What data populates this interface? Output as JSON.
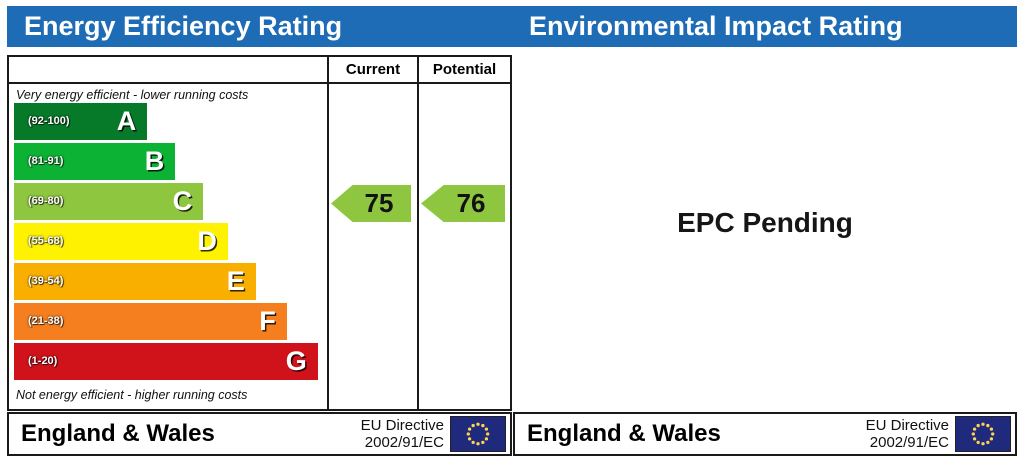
{
  "header": {
    "left_title": "Energy Efficiency Rating",
    "right_title": "Environmental Impact Rating"
  },
  "colors": {
    "header_bar": "#1d6cb5",
    "flag_bg": "#1f2a7d",
    "flag_stars": "#ffd34f",
    "border": "#1a1a1a"
  },
  "epc": {
    "columns": {
      "current": "Current",
      "potential": "Potential"
    },
    "top_caption": "Very energy efficient - lower running costs",
    "bottom_caption": "Not energy efficient - higher running costs",
    "bands": [
      {
        "letter": "A",
        "range": "(92-100)",
        "color": "#067a28",
        "width_pct": 43
      },
      {
        "letter": "B",
        "range": "(81-91)",
        "color": "#0cb234",
        "width_pct": 52
      },
      {
        "letter": "C",
        "range": "(69-80)",
        "color": "#8ec63f",
        "width_pct": 61
      },
      {
        "letter": "D",
        "range": "(55-68)",
        "color": "#fff200",
        "width_pct": 69
      },
      {
        "letter": "E",
        "range": "(39-54)",
        "color": "#f8af00",
        "width_pct": 78
      },
      {
        "letter": "F",
        "range": "(21-38)",
        "color": "#f57e1e",
        "width_pct": 88
      },
      {
        "letter": "G",
        "range": "(1-20)",
        "color": "#d0121a",
        "width_pct": 98
      }
    ],
    "current": {
      "value": "75",
      "band_index": 2,
      "color": "#8ec63f"
    },
    "potential": {
      "value": "76",
      "band_index": 2,
      "color": "#8ec63f"
    }
  },
  "environmental": {
    "pending_text": "EPC Pending"
  },
  "footer": {
    "region": "England & Wales",
    "directive_line1": "EU Directive",
    "directive_line2": "2002/91/EC"
  },
  "chart_data": {
    "type": "bar",
    "title": "Energy Efficiency Rating",
    "categories": [
      "A (92-100)",
      "B (81-91)",
      "C (69-80)",
      "D (55-68)",
      "E (39-54)",
      "F (21-38)",
      "G (1-20)"
    ],
    "band_colors": [
      "#067a28",
      "#0cb234",
      "#8ec63f",
      "#fff200",
      "#f8af00",
      "#f57e1e",
      "#d0121a"
    ],
    "series": [
      {
        "name": "Current",
        "value": 75,
        "band": "C"
      },
      {
        "name": "Potential",
        "value": 76,
        "band": "C"
      }
    ],
    "xlabel": "",
    "ylabel": "",
    "legend_position": "column-headers",
    "notes": "EPC energy efficiency band chart; Environmental Impact panel shows text 'EPC Pending'"
  }
}
